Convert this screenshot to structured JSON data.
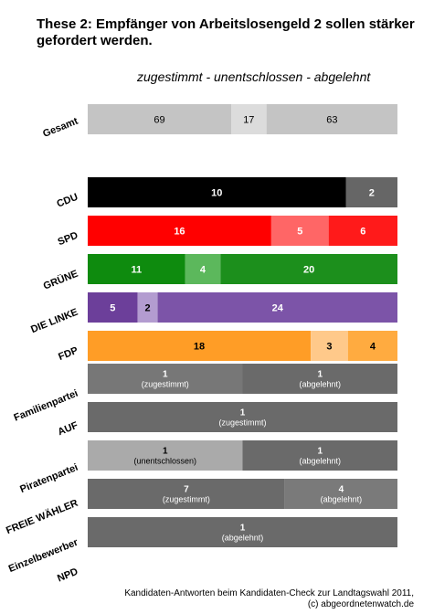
{
  "title": "These 2: Empfänger von Arbeitslosengeld 2 sollen stärker gefordert werden.",
  "subtitle": "zugestimmt - unentschlossen - abgelehnt",
  "footer": {
    "line1": "Kandidaten-Antworten beim Kandidaten-Check zur Landtagswahl 2011,",
    "line2": "(c) abgeordnetenwatch.de"
  },
  "chart_data": {
    "type": "bar",
    "orientation": "horizontal",
    "stacked": "percent",
    "categories": [
      "Gesamt",
      "",
      "CDU",
      "SPD",
      "GRÜNE",
      "DIE LINKE",
      "FDP",
      "Familienpartei",
      "AUF",
      "Piratenpartei",
      "FREIE WÄHLER",
      "Einzelbewerber",
      "NPD"
    ],
    "series": [
      {
        "values": [
          69,
          null,
          10,
          16,
          11,
          5,
          18,
          1,
          1,
          0,
          7,
          0,
          null
        ],
        "labels": [
          "69",
          "",
          "10",
          "16",
          "11",
          "5",
          "18",
          "1\n(zugestimmt)",
          "1\n(zugestimmt)",
          "",
          "7\n(zugestimmt)",
          "",
          ""
        ]
      },
      {
        "values": [
          17,
          null,
          0,
          0,
          4,
          2,
          0,
          0,
          0,
          1,
          0,
          0,
          null
        ],
        "labels": [
          "17",
          "",
          "",
          "",
          "4",
          "2",
          "",
          "",
          "",
          "1\n(unentschlossen)",
          "",
          "",
          ""
        ]
      },
      {
        "values": [
          63,
          null,
          2,
          5,
          0,
          0,
          3,
          0,
          0,
          0,
          0,
          0,
          null
        ],
        "labels": [
          "63",
          "",
          "2",
          "5",
          "",
          "",
          "3",
          "",
          "",
          "",
          "",
          "",
          ""
        ]
      },
      {
        "values": [
          0,
          null,
          0,
          6,
          20,
          24,
          4,
          1,
          0,
          1,
          4,
          1,
          null
        ],
        "labels": [
          "",
          "",
          "",
          "6",
          "20",
          "24",
          "4",
          "1\n(abgelehnt)",
          "",
          "1\n(abgelehnt)",
          "4\n(abgelehnt)",
          "1\n(abgelehnt)",
          ""
        ]
      }
    ],
    "colors": {
      "Gesamt": [
        "#c4c4c4",
        "#dcdcdc",
        "#c4c4c4",
        "#c4c4c4"
      ],
      "CDU": [
        "#000000",
        "#000000",
        "#666666",
        "#1a1a1a"
      ],
      "SPD": [
        "#ff0000",
        "#ff0000",
        "#ff6666",
        "#ff1a1a"
      ],
      "GRÜNE": [
        "#0e8b0e",
        "#5cb85c",
        "#5cb85c",
        "#1c8f1c"
      ],
      "DIE LINKE": [
        "#6c3f9a",
        "#b39cd0",
        "#b39cd0",
        "#7c54a8"
      ],
      "FDP": [
        "#ff9d26",
        "#ffc98a",
        "#ffc98a",
        "#ffab40"
      ],
      "Familienpartei": [
        "#777777",
        "#aaaaaa",
        "#aaaaaa",
        "#6a6a6a"
      ],
      "AUF": [
        "#6a6a6a",
        "#aaaaaa",
        "#aaaaaa",
        "#6a6a6a"
      ],
      "Piratenpartei": [
        "#777777",
        "#aaaaaa",
        "#aaaaaa",
        "#6a6a6a"
      ],
      "FREIE WÄHLER": [
        "#6a6a6a",
        "#aaaaaa",
        "#aaaaaa",
        "#7a7a7a"
      ],
      "Einzelbewerber": [
        "#6a6a6a",
        "#aaaaaa",
        "#aaaaaa",
        "#6a6a6a"
      ]
    }
  }
}
